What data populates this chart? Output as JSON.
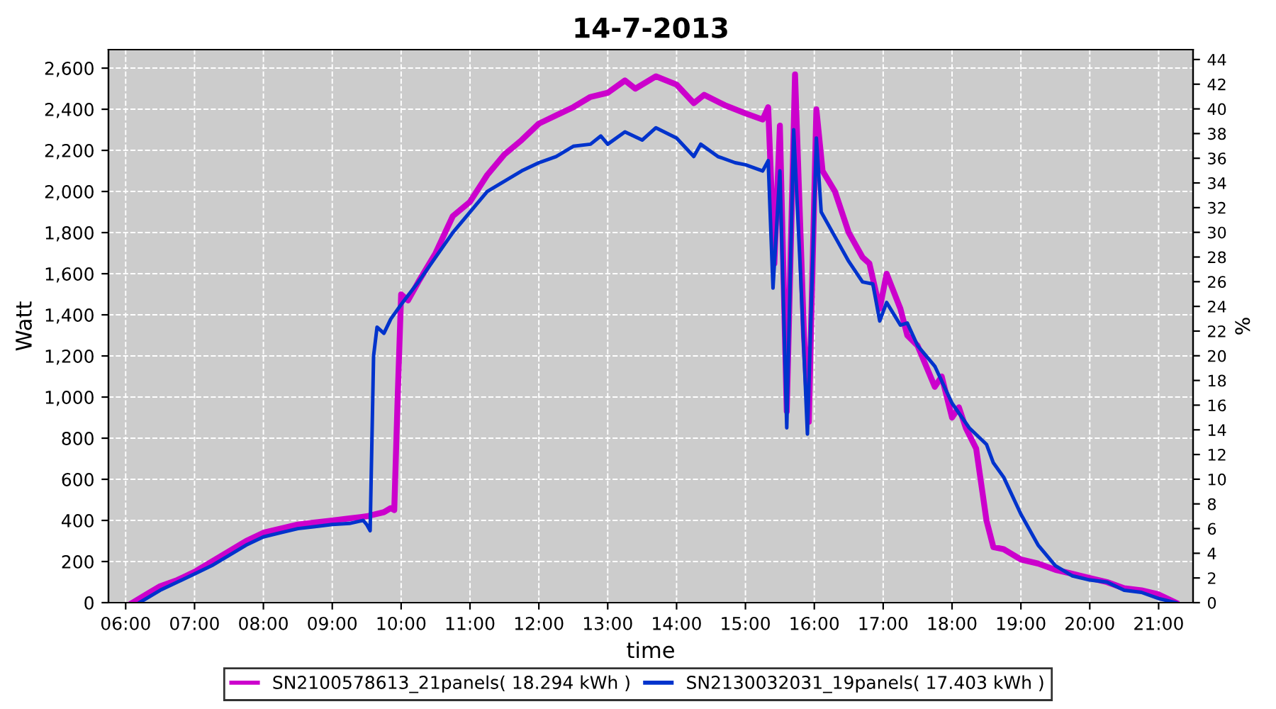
{
  "chart_data": {
    "type": "line",
    "title": "14-7-2013",
    "xlabel": "time",
    "ylabel": "Watt",
    "y2label": "%",
    "xlim": [
      5.75,
      21.5
    ],
    "xticks": [
      {
        "value": 6,
        "label": "06:00"
      },
      {
        "value": 7,
        "label": "07:00"
      },
      {
        "value": 8,
        "label": "08:00"
      },
      {
        "value": 9,
        "label": "09:00"
      },
      {
        "value": 10,
        "label": "10:00"
      },
      {
        "value": 11,
        "label": "11:00"
      },
      {
        "value": 12,
        "label": "12:00"
      },
      {
        "value": 13,
        "label": "13:00"
      },
      {
        "value": 14,
        "label": "14:00"
      },
      {
        "value": 15,
        "label": "15:00"
      },
      {
        "value": 16,
        "label": "16:00"
      },
      {
        "value": 17,
        "label": "17:00"
      },
      {
        "value": 18,
        "label": "18:00"
      },
      {
        "value": 19,
        "label": "19:00"
      },
      {
        "value": 20,
        "label": "20:00"
      },
      {
        "value": 21,
        "label": "21:00"
      }
    ],
    "ylim": [
      0,
      2690
    ],
    "yticks": [
      0,
      200,
      400,
      600,
      800,
      {
        "value": 1000,
        "label": "1,000"
      },
      {
        "value": 1200,
        "label": "1,200"
      },
      {
        "value": 1400,
        "label": "1,400"
      },
      {
        "value": 1600,
        "label": "1,600"
      },
      {
        "value": 1800,
        "label": "1,800"
      },
      {
        "value": 2000,
        "label": "2,000"
      },
      {
        "value": 2200,
        "label": "2,200"
      },
      {
        "value": 2400,
        "label": "2,400"
      },
      {
        "value": 2600,
        "label": "2,600"
      }
    ],
    "y2lim": [
      0,
      44.8
    ],
    "y2ticks": [
      0,
      2,
      4,
      6,
      8,
      10,
      12,
      14,
      16,
      18,
      20,
      22,
      24,
      26,
      28,
      30,
      32,
      34,
      36,
      38,
      40,
      42,
      44
    ],
    "grid": true,
    "legend": "bottom",
    "line_style": "solid",
    "series": [
      {
        "name": "SN2100578613_21panels( 18.294 kWh )",
        "color": "#cc00cc",
        "x": [
          6.1,
          6.3,
          6.5,
          6.75,
          7.0,
          7.25,
          7.5,
          7.75,
          8.0,
          8.25,
          8.5,
          8.75,
          9.0,
          9.25,
          9.5,
          9.75,
          9.85,
          9.9,
          9.95,
          10.0,
          10.1,
          10.25,
          10.5,
          10.75,
          11.0,
          11.25,
          11.5,
          11.75,
          12.0,
          12.25,
          12.5,
          12.75,
          13.0,
          13.25,
          13.4,
          13.7,
          14.0,
          14.25,
          14.4,
          14.7,
          15.0,
          15.25,
          15.33,
          15.42,
          15.5,
          15.6,
          15.72,
          15.85,
          15.92,
          16.03,
          16.12,
          16.3,
          16.5,
          16.7,
          16.8,
          16.95,
          17.05,
          17.25,
          17.35,
          17.5,
          17.75,
          17.85,
          18.0,
          18.1,
          18.2,
          18.35,
          18.5,
          18.6,
          18.75,
          19.0,
          19.25,
          19.5,
          19.75,
          20.0,
          20.25,
          20.5,
          20.75,
          21.0,
          21.25
        ],
        "values": [
          0,
          40,
          80,
          110,
          150,
          200,
          250,
          300,
          340,
          360,
          380,
          390,
          400,
          410,
          420,
          440,
          460,
          450,
          1000,
          1500,
          1470,
          1560,
          1700,
          1880,
          1950,
          2080,
          2180,
          2250,
          2330,
          2370,
          2410,
          2460,
          2480,
          2540,
          2500,
          2560,
          2520,
          2430,
          2470,
          2420,
          2380,
          2350,
          2410,
          1650,
          2320,
          930,
          2570,
          1300,
          880,
          2400,
          2100,
          2000,
          1800,
          1680,
          1650,
          1430,
          1600,
          1430,
          1300,
          1250,
          1050,
          1100,
          900,
          950,
          850,
          750,
          400,
          270,
          260,
          210,
          190,
          160,
          140,
          120,
          100,
          70,
          60,
          40,
          0
        ]
      },
      {
        "name": "SN2130032031_19panels( 17.403 kWh )",
        "color": "#0033cc",
        "x": [
          6.2,
          6.5,
          6.75,
          7.0,
          7.25,
          7.5,
          7.75,
          8.0,
          8.25,
          8.5,
          8.75,
          9.0,
          9.25,
          9.45,
          9.5,
          9.55,
          9.6,
          9.65,
          9.75,
          9.85,
          10.0,
          10.25,
          10.5,
          10.75,
          11.0,
          11.25,
          11.5,
          11.75,
          12.0,
          12.25,
          12.5,
          12.75,
          12.9,
          13.0,
          13.25,
          13.5,
          13.7,
          14.0,
          14.25,
          14.35,
          14.6,
          14.85,
          15.0,
          15.25,
          15.33,
          15.4,
          15.5,
          15.6,
          15.7,
          15.8,
          15.9,
          16.03,
          16.1,
          16.3,
          16.5,
          16.7,
          16.85,
          16.95,
          17.05,
          17.25,
          17.35,
          17.5,
          17.75,
          18.0,
          18.25,
          18.5,
          18.6,
          18.75,
          19.0,
          19.25,
          19.5,
          19.75,
          20.0,
          20.25,
          20.5,
          20.75,
          21.0,
          21.25
        ],
        "values": [
          0,
          60,
          100,
          140,
          180,
          230,
          280,
          320,
          340,
          360,
          370,
          380,
          385,
          400,
          380,
          350,
          1200,
          1340,
          1310,
          1380,
          1450,
          1560,
          1680,
          1800,
          1900,
          2000,
          2050,
          2100,
          2140,
          2170,
          2220,
          2230,
          2270,
          2230,
          2290,
          2250,
          2310,
          2260,
          2170,
          2230,
          2170,
          2140,
          2130,
          2100,
          2150,
          1530,
          2100,
          850,
          2300,
          1600,
          820,
          2260,
          1900,
          1780,
          1660,
          1560,
          1550,
          1370,
          1460,
          1350,
          1360,
          1250,
          1150,
          970,
          850,
          770,
          680,
          610,
          430,
          280,
          180,
          130,
          110,
          100,
          60,
          50,
          20,
          0
        ]
      }
    ]
  }
}
